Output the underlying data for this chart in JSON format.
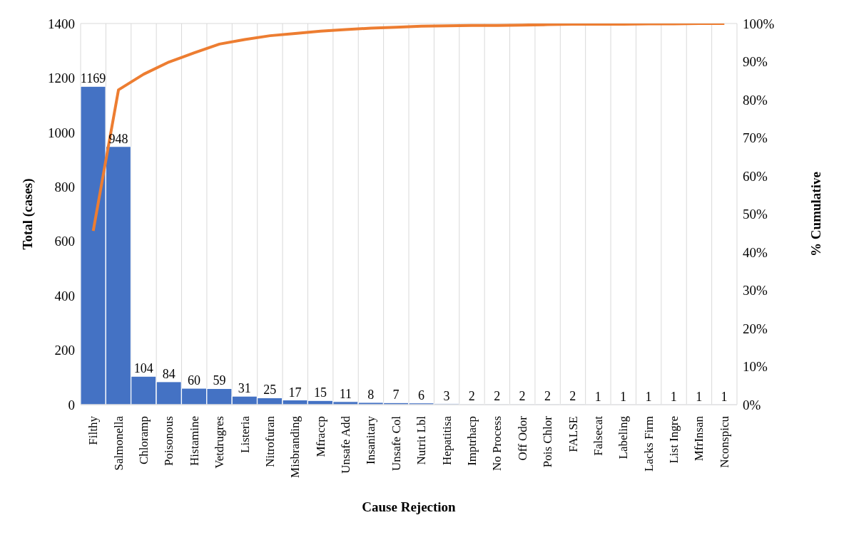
{
  "chart_data": {
    "type": "bar",
    "xlabel": "Cause Rejection",
    "ylabel": "Total (cases)",
    "y2label": "% Cumulative",
    "categories": [
      "Filthy",
      "Salmonella",
      "Chloramp",
      "Poisonous",
      "Histamine",
      "Vetdrugres",
      "Listeria",
      "Nitrofuran",
      "Misbranding",
      "Mfraccp",
      "Unsafe Add",
      "Insanitary",
      "Unsafe Col",
      "Nutrit Lbl",
      "Hepatitisa",
      "Imptrhacp",
      "No Process",
      "Off Odor",
      "Pois Chlor",
      "FALSE",
      "Falsecat",
      "Labeling",
      "Lacks Firm",
      "List Ingre",
      "MfrInsan",
      "Nconspicu"
    ],
    "series": [
      {
        "color": "#4472c4",
        "values": [
          1169,
          948,
          104,
          84,
          60,
          59,
          31,
          25,
          17,
          15,
          11,
          8,
          7,
          6,
          3,
          2,
          2,
          2,
          2,
          2,
          1,
          1,
          1,
          1,
          1,
          1
        ],
        "value_labels": [
          "1169",
          "948",
          "104",
          "84",
          "60",
          "59",
          "31",
          "25",
          "17",
          "15",
          "11",
          "8",
          "7",
          "6",
          "3",
          "2",
          "2",
          "2",
          "2",
          "2",
          "1",
          "1",
          "1",
          "1",
          "1",
          "1"
        ]
      },
      {
        "type": "line",
        "axis": "y2",
        "color": "#ed7d31",
        "values": [
          45.6,
          82.6,
          86.7,
          89.9,
          92.3,
          94.6,
          95.8,
          96.8,
          97.4,
          98.0,
          98.4,
          98.8,
          99.0,
          99.3,
          99.4,
          99.5,
          99.5,
          99.6,
          99.7,
          99.8,
          99.8,
          99.8,
          99.9,
          99.9,
          100.0,
          100.0
        ]
      }
    ],
    "ylim": [
      0,
      1400
    ],
    "yticks": [
      0,
      200,
      400,
      600,
      800,
      1000,
      1200,
      1400
    ],
    "y2lim": [
      0,
      100
    ],
    "y2ticks": [
      {
        "value": 0,
        "label": "0%"
      },
      {
        "value": 10,
        "label": "10%"
      },
      {
        "value": 20,
        "label": "20%"
      },
      {
        "value": 30,
        "label": "30%"
      },
      {
        "value": 40,
        "label": "40%"
      },
      {
        "value": 50,
        "label": "50%"
      },
      {
        "value": 60,
        "label": "60%"
      },
      {
        "value": 70,
        "label": "70%"
      },
      {
        "value": 80,
        "label": "80%"
      },
      {
        "value": 90,
        "label": "90%"
      },
      {
        "value": 100,
        "label": "100%"
      }
    ],
    "grid": true
  }
}
